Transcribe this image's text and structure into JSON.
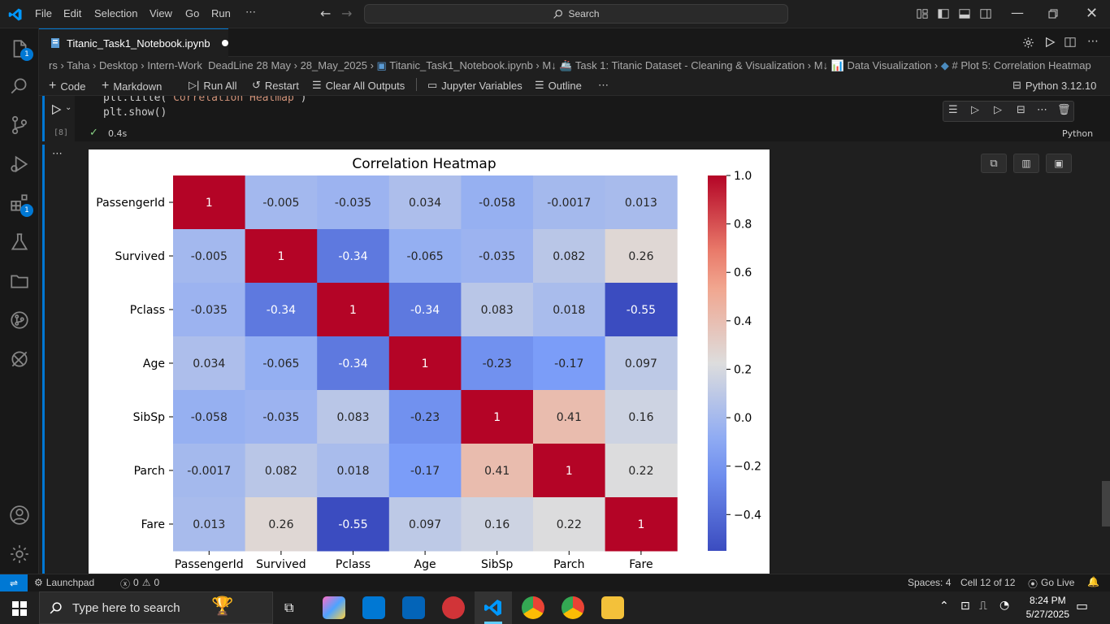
{
  "menu": [
    "File",
    "Edit",
    "Selection",
    "View",
    "Go",
    "Run"
  ],
  "search": {
    "label": "Search"
  },
  "tab": {
    "title": "Titanic_Task1_Notebook.ipynb"
  },
  "breadcrumb": [
    "rs",
    "Taha",
    "Desktop",
    "Intern-Work",
    "DeadLine 28 May",
    "28_May_2025",
    "Titanic_Task1_Notebook.ipynb",
    "M↓ 🚢 Task 1: Titanic Dataset - Cleaning & Visualization",
    "M↓ 📊 Data Visualization",
    "# Plot 5: Correlation Heatmap"
  ],
  "toolbar": {
    "code": "Code",
    "markdown": "Markdown",
    "run_all": "Run All",
    "restart": "Restart",
    "clear_outputs": "Clear All Outputs",
    "variables": "Jupyter Variables",
    "outline": "Outline",
    "kernel": "Python 3.12.10"
  },
  "cell": {
    "line1_pre": "plt.title(",
    "line1_str": "'Correlation Heatmap'",
    "line1_post": ")",
    "line2": "plt.show()",
    "exec_count": "[8]",
    "duration": "0.4s",
    "language": "Python"
  },
  "activity": {
    "explorer_badge": "1",
    "extensions_badge": "1"
  },
  "chart_data": {
    "type": "heatmap",
    "title": "Correlation Heatmap",
    "labels": [
      "PassengerId",
      "Survived",
      "Pclass",
      "Age",
      "SibSp",
      "Parch",
      "Fare"
    ],
    "values": [
      [
        1,
        -0.005,
        -0.035,
        0.034,
        -0.058,
        -0.0017,
        0.013
      ],
      [
        -0.005,
        1,
        -0.34,
        -0.065,
        -0.035,
        0.082,
        0.26
      ],
      [
        -0.035,
        -0.34,
        1,
        -0.34,
        0.083,
        0.018,
        -0.55
      ],
      [
        0.034,
        -0.065,
        -0.34,
        1,
        -0.23,
        -0.17,
        0.097
      ],
      [
        -0.058,
        -0.035,
        0.083,
        -0.23,
        1,
        0.41,
        0.16
      ],
      [
        -0.0017,
        0.082,
        0.018,
        -0.17,
        0.41,
        1,
        0.22
      ],
      [
        0.013,
        0.26,
        -0.55,
        0.097,
        0.16,
        0.22,
        1
      ]
    ],
    "annotations": [
      [
        "1",
        "-0.005",
        "-0.035",
        "0.034",
        "-0.058",
        "-0.0017",
        "0.013"
      ],
      [
        "-0.005",
        "1",
        "-0.34",
        "-0.065",
        "-0.035",
        "0.082",
        "0.26"
      ],
      [
        "-0.035",
        "-0.34",
        "1",
        "-0.34",
        "0.083",
        "0.018",
        "-0.55"
      ],
      [
        "0.034",
        "-0.065",
        "-0.34",
        "1",
        "-0.23",
        "-0.17",
        "0.097"
      ],
      [
        "-0.058",
        "-0.035",
        "0.083",
        "-0.23",
        "1",
        "0.41",
        "0.16"
      ],
      [
        "-0.0017",
        "0.082",
        "0.018",
        "-0.17",
        "0.41",
        "1",
        "0.22"
      ],
      [
        "0.013",
        "0.26",
        "-0.55",
        "0.097",
        "0.16",
        "0.22",
        "1"
      ]
    ],
    "colormap": "coolwarm",
    "vmin": -0.55,
    "vmax": 1.0,
    "colorbar_ticks": [
      1.0,
      0.8,
      0.6,
      0.4,
      0.2,
      0.0,
      -0.2,
      -0.4
    ],
    "colorbar_tick_labels": [
      "1.0",
      "0.8",
      "0.6",
      "0.4",
      "0.2",
      "0.0",
      "−0.2",
      "−0.4"
    ]
  },
  "status": {
    "launchpad": "Launchpad",
    "errors": "0",
    "warnings": "0",
    "spaces": "Spaces: 4",
    "cell": "Cell 12 of 12",
    "golive": "Go Live"
  },
  "taskbar": {
    "search_placeholder": "Type here to search",
    "time": "8:24 PM",
    "date": "5/27/2025"
  }
}
